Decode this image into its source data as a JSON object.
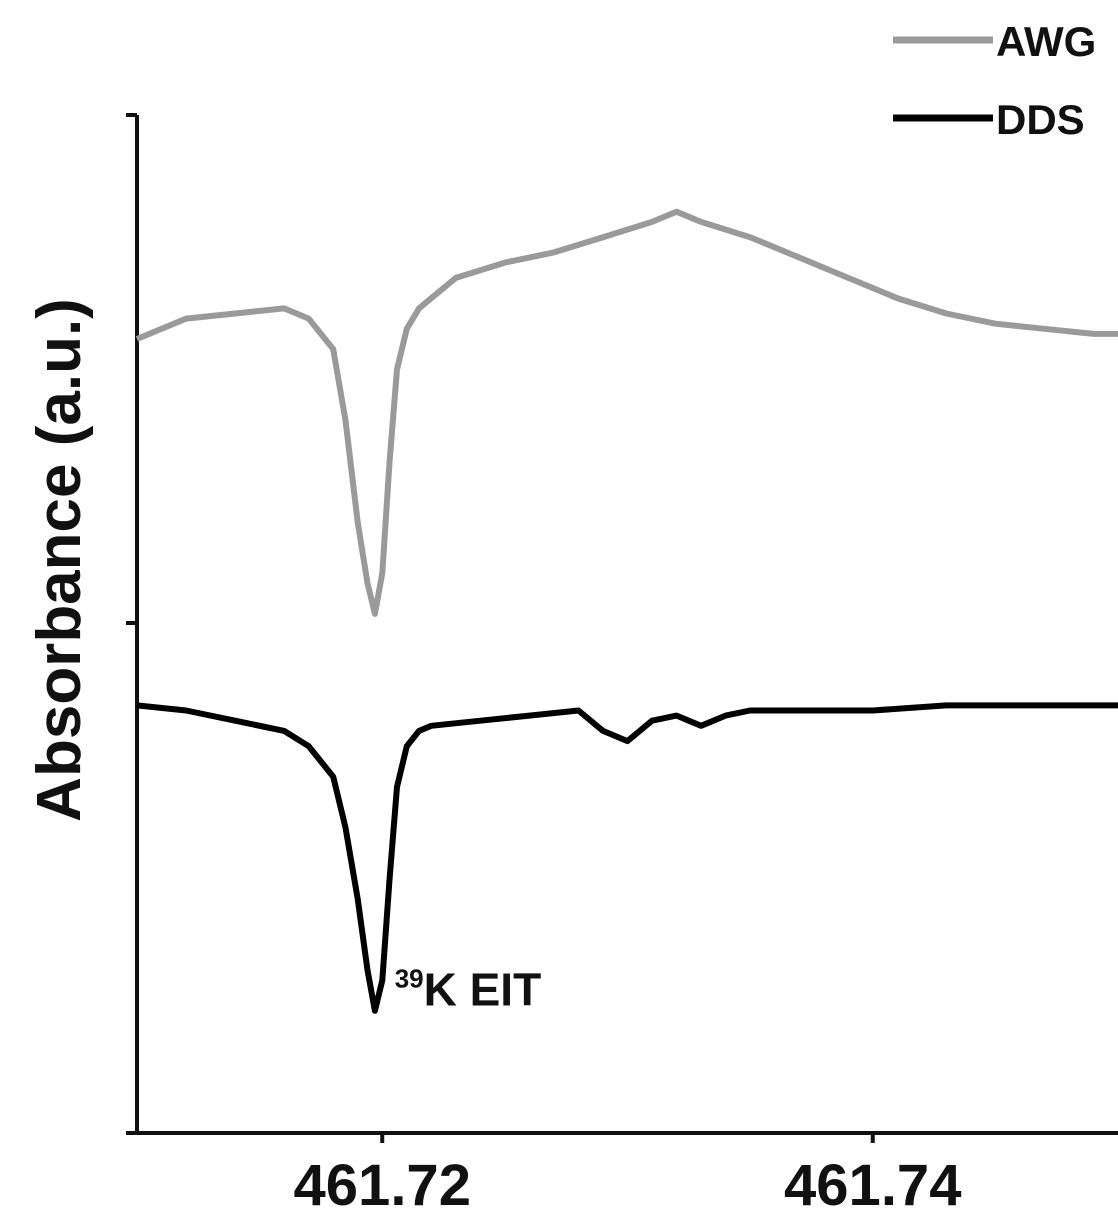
{
  "chart_data": {
    "type": "line",
    "title": "",
    "xlabel": "",
    "ylabel": "Absorbance (a.u.)",
    "xlim": [
      461.71,
      461.75
    ],
    "ylim": [
      0,
      10
    ],
    "x_ticks": [
      461.72,
      461.74
    ],
    "x_tick_labels": [
      "461.72",
      "461.74"
    ],
    "y_tick_labels": [],
    "grid": false,
    "legend_position": "top-right",
    "series": [
      {
        "name": "AWG",
        "color": "#9a9a9a",
        "x": [
          461.71,
          461.712,
          461.714,
          461.716,
          461.717,
          461.718,
          461.7185,
          461.719,
          461.7194,
          461.7197,
          461.72,
          461.7203,
          461.7206,
          461.721,
          461.7215,
          461.722,
          461.723,
          461.725,
          461.727,
          461.729,
          461.731,
          461.732,
          461.733,
          461.735,
          461.737,
          461.739,
          461.741,
          461.743,
          461.745,
          461.747,
          461.749,
          461.75
        ],
        "y": [
          7.8,
          8.0,
          8.05,
          8.1,
          8.0,
          7.7,
          7.0,
          6.0,
          5.4,
          5.1,
          5.5,
          6.6,
          7.5,
          7.9,
          8.1,
          8.2,
          8.4,
          8.55,
          8.65,
          8.8,
          8.95,
          9.05,
          8.95,
          8.8,
          8.6,
          8.4,
          8.2,
          8.05,
          7.95,
          7.9,
          7.85,
          7.85
        ]
      },
      {
        "name": "DDS",
        "color": "#000000",
        "x": [
          461.71,
          461.712,
          461.714,
          461.716,
          461.717,
          461.718,
          461.7185,
          461.719,
          461.7194,
          461.7197,
          461.72,
          461.7203,
          461.7206,
          461.721,
          461.7215,
          461.722,
          461.724,
          461.726,
          461.728,
          461.729,
          461.73,
          461.731,
          461.732,
          461.733,
          461.734,
          461.735,
          461.737,
          461.74,
          461.743,
          461.746,
          461.75
        ],
        "y": [
          4.2,
          4.15,
          4.05,
          3.95,
          3.8,
          3.5,
          3.0,
          2.3,
          1.6,
          1.2,
          1.5,
          2.5,
          3.4,
          3.8,
          3.95,
          4.0,
          4.05,
          4.1,
          4.15,
          3.95,
          3.85,
          4.05,
          4.1,
          4.0,
          4.1,
          4.15,
          4.15,
          4.15,
          4.2,
          4.2,
          4.2
        ]
      }
    ],
    "annotation": {
      "superscript": "39",
      "text": "K EIT",
      "x": 461.7201,
      "y": 1.35
    }
  }
}
